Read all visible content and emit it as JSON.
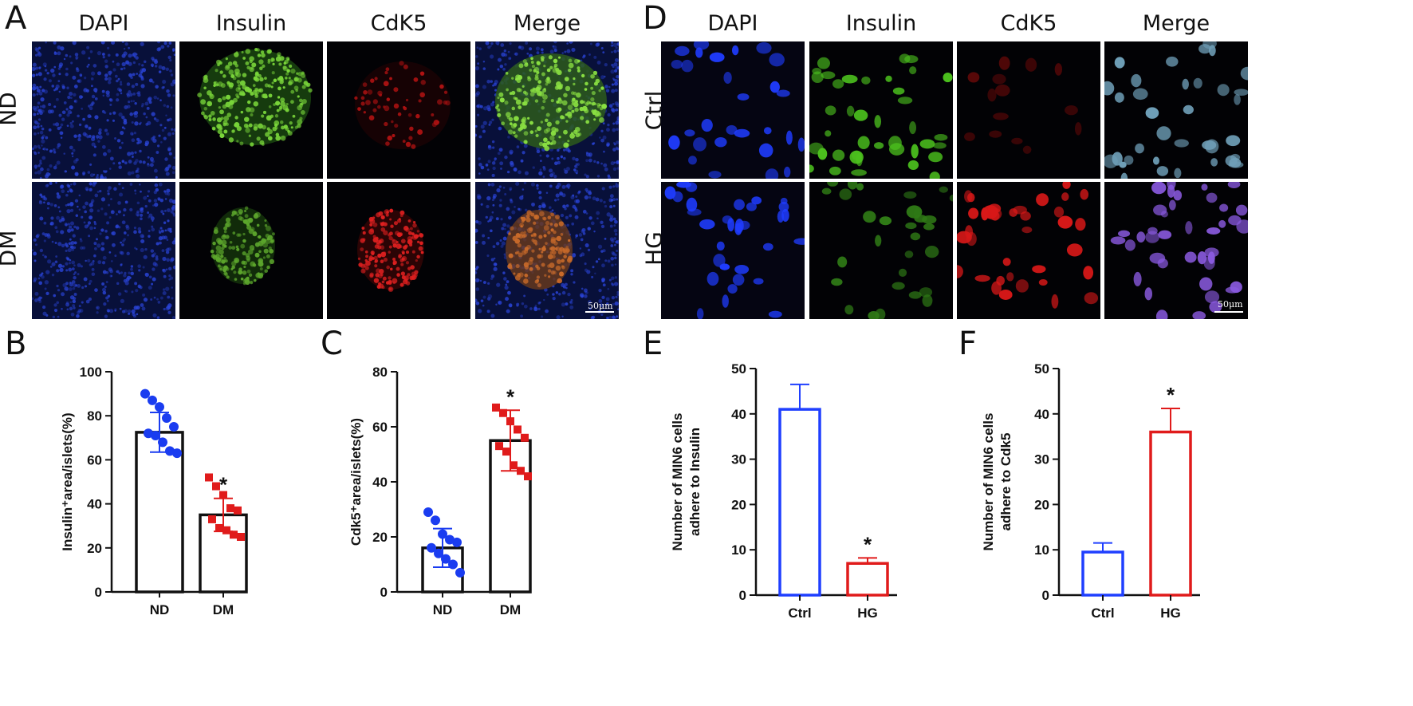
{
  "panel_letters": {
    "A": "A",
    "B": "B",
    "C": "C",
    "D": "D",
    "E": "E",
    "F": "F"
  },
  "micrograph_A": {
    "columns": [
      "DAPI",
      "Insulin",
      "CdK5",
      "Merge"
    ],
    "rows": [
      "ND",
      "DM"
    ],
    "scale_bar": "50μm"
  },
  "micrograph_D": {
    "columns": [
      "DAPI",
      "Insulin",
      "CdK5",
      "Merge"
    ],
    "rows": [
      "Ctrl",
      "HG"
    ],
    "scale_bar": "50μm"
  },
  "colors": {
    "blue": "#1f3fff",
    "red": "#e01b1b",
    "dot_blue": "#1a3cf0",
    "dot_red": "#e01b1b"
  },
  "chart_data": [
    {
      "id": "B",
      "type": "bar",
      "categories": [
        "ND",
        "DM"
      ],
      "values": [
        72.5,
        35
      ],
      "error": [
        9,
        7.5
      ],
      "ylabel": "Insulin⁺area/islets(%)",
      "ylim": [
        0,
        100
      ],
      "yticks": [
        0,
        20,
        40,
        60,
        80,
        100
      ],
      "points": [
        [
          90,
          87,
          84,
          79,
          75,
          72,
          71,
          68,
          64,
          63
        ],
        [
          52,
          48,
          44,
          38,
          37,
          33,
          29,
          28,
          26,
          25
        ]
      ],
      "significance": [
        null,
        "*"
      ]
    },
    {
      "id": "C",
      "type": "bar",
      "categories": [
        "ND",
        "DM"
      ],
      "values": [
        16,
        55
      ],
      "error": [
        7,
        11
      ],
      "ylabel": "Cdk5⁺area/islets(%)",
      "ylim": [
        0,
        80
      ],
      "yticks": [
        0,
        20,
        40,
        60,
        80
      ],
      "points": [
        [
          29,
          26,
          21,
          19,
          18,
          16,
          14,
          12,
          10,
          7
        ],
        [
          67,
          65,
          62,
          59,
          56,
          53,
          51,
          46,
          44,
          42
        ]
      ],
      "significance": [
        null,
        "*"
      ]
    },
    {
      "id": "E",
      "type": "bar",
      "categories": [
        "Ctrl",
        "HG"
      ],
      "values": [
        41,
        7
      ],
      "error": [
        5.5,
        1.2
      ],
      "ylabel": [
        "Number of MIN6 cells",
        "adhere to Insulin"
      ],
      "ylim": [
        0,
        50
      ],
      "yticks": [
        0,
        10,
        20,
        30,
        40,
        50
      ],
      "significance": [
        null,
        "*"
      ]
    },
    {
      "id": "F",
      "type": "bar",
      "categories": [
        "Ctrl",
        "HG"
      ],
      "values": [
        9.5,
        36
      ],
      "error": [
        2,
        5.2
      ],
      "ylabel": [
        "Number of MIN6 cells",
        "adhere to Cdk5"
      ],
      "ylim": [
        0,
        50
      ],
      "yticks": [
        0,
        10,
        20,
        30,
        40,
        50
      ],
      "significance": [
        null,
        "*"
      ]
    }
  ]
}
